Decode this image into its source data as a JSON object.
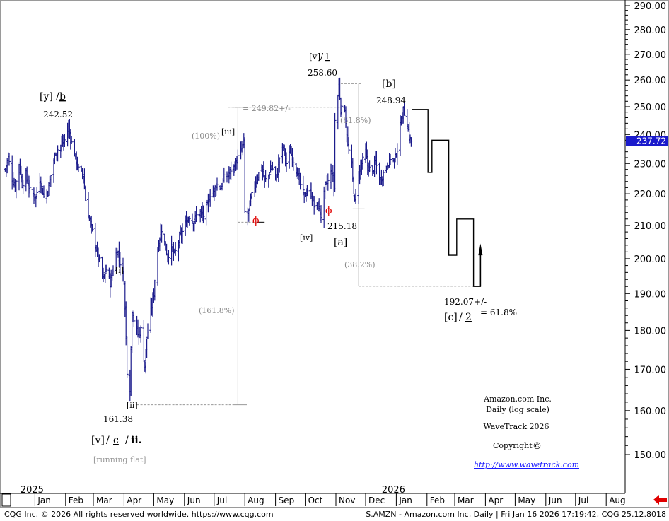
{
  "chart_data": {
    "type": "ohlc",
    "title": "Amazon.com Inc.",
    "subtitle": "Daily (log scale)",
    "scale": "log",
    "ylim": [
      141,
      291
    ],
    "grid": false,
    "colors": {
      "bars": "#1c1c8c",
      "axis": "#000000",
      "fib_lines": "#9a9a9a",
      "phi": "#e00000",
      "last_price_bg": "#1a1acc",
      "last_price_text": "#ffffff",
      "back_arrow": "#e00000"
    },
    "y_ticks": [
      "290.00",
      "280.00",
      "270.00",
      "260.00",
      "250.00",
      "240.00",
      "230.00",
      "220.00",
      "210.00",
      "200.00",
      "190.00",
      "180.00",
      "170.00",
      "160.00",
      "150.00"
    ],
    "last_price": "237.72",
    "x_axis": {
      "months": [
        "Jan",
        "Feb",
        "Mar",
        "Apr",
        "May",
        "Jun",
        "Jul",
        "Aug",
        "Sep",
        "Oct",
        "Nov",
        "Dec",
        "Jan",
        "Feb",
        "Mar",
        "Apr",
        "May",
        "Jun",
        "Jul",
        "Aug"
      ],
      "years": [
        "2025",
        "2026"
      ]
    },
    "price_path": [
      {
        "date": "2024-12-02",
        "close": 228
      },
      {
        "date": "2024-12-05",
        "close": 232
      },
      {
        "date": "2024-12-09",
        "close": 225
      },
      {
        "date": "2024-12-12",
        "close": 222
      },
      {
        "date": "2024-12-16",
        "close": 230
      },
      {
        "date": "2024-12-19",
        "close": 223
      },
      {
        "date": "2024-12-23",
        "close": 226
      },
      {
        "date": "2024-12-27",
        "close": 221
      },
      {
        "date": "2025-01-02",
        "close": 219
      },
      {
        "date": "2025-01-06",
        "close": 225
      },
      {
        "date": "2025-01-10",
        "close": 219
      },
      {
        "date": "2025-01-14",
        "close": 221
      },
      {
        "date": "2025-01-17",
        "close": 226
      },
      {
        "date": "2025-01-22",
        "close": 234
      },
      {
        "date": "2025-01-27",
        "close": 236
      },
      {
        "date": "2025-01-31",
        "close": 238
      },
      {
        "date": "2025-02-04",
        "close": 242.5
      },
      {
        "date": "2025-02-07",
        "close": 237
      },
      {
        "date": "2025-02-11",
        "close": 232
      },
      {
        "date": "2025-02-14",
        "close": 228
      },
      {
        "date": "2025-02-19",
        "close": 226
      },
      {
        "date": "2025-02-21",
        "close": 218
      },
      {
        "date": "2025-02-25",
        "close": 212
      },
      {
        "date": "2025-02-28",
        "close": 208
      },
      {
        "date": "2025-03-04",
        "close": 203
      },
      {
        "date": "2025-03-07",
        "close": 199
      },
      {
        "date": "2025-03-11",
        "close": 194
      },
      {
        "date": "2025-03-14",
        "close": 197
      },
      {
        "date": "2025-03-18",
        "close": 193
      },
      {
        "date": "2025-03-21",
        "close": 197
      },
      {
        "date": "2025-03-25",
        "close": 203
      },
      {
        "date": "2025-03-28",
        "close": 199
      },
      {
        "date": "2025-04-01",
        "close": 194
      },
      {
        "date": "2025-04-04",
        "close": 170
      },
      {
        "date": "2025-04-07",
        "close": 165
      },
      {
        "date": "2025-04-09",
        "close": 186
      },
      {
        "date": "2025-04-11",
        "close": 183
      },
      {
        "date": "2025-04-15",
        "close": 179
      },
      {
        "date": "2025-04-18",
        "close": 180
      },
      {
        "date": "2025-04-22",
        "close": 171
      },
      {
        "date": "2025-04-24",
        "close": 178
      },
      {
        "date": "2025-04-28",
        "close": 185
      },
      {
        "date": "2025-05-01",
        "close": 190
      },
      {
        "date": "2025-05-02",
        "close": 194
      },
      {
        "date": "2025-05-06",
        "close": 205
      },
      {
        "date": "2025-05-09",
        "close": 209
      },
      {
        "date": "2025-05-12",
        "close": 204
      },
      {
        "date": "2025-05-15",
        "close": 201
      },
      {
        "date": "2025-05-19",
        "close": 203
      },
      {
        "date": "2025-05-22",
        "close": 201
      },
      {
        "date": "2025-05-27",
        "close": 206
      },
      {
        "date": "2025-05-30",
        "close": 208
      },
      {
        "date": "2025-06-03",
        "close": 211
      },
      {
        "date": "2025-06-06",
        "close": 213
      },
      {
        "date": "2025-06-10",
        "close": 211
      },
      {
        "date": "2025-06-13",
        "close": 213
      },
      {
        "date": "2025-06-17",
        "close": 214
      },
      {
        "date": "2025-06-20",
        "close": 213
      },
      {
        "date": "2025-06-24",
        "close": 216
      },
      {
        "date": "2025-06-27",
        "close": 220
      },
      {
        "date": "2025-07-01",
        "close": 221
      },
      {
        "date": "2025-07-03",
        "close": 223
      },
      {
        "date": "2025-07-08",
        "close": 222
      },
      {
        "date": "2025-07-11",
        "close": 225
      },
      {
        "date": "2025-07-15",
        "close": 226
      },
      {
        "date": "2025-07-18",
        "close": 228
      },
      {
        "date": "2025-07-22",
        "close": 229
      },
      {
        "date": "2025-07-25",
        "close": 232
      },
      {
        "date": "2025-07-29",
        "close": 235
      },
      {
        "date": "2025-07-31",
        "close": 237
      },
      {
        "date": "2025-08-01",
        "close": 214
      },
      {
        "date": "2025-08-04",
        "close": 213
      },
      {
        "date": "2025-08-07",
        "close": 218
      },
      {
        "date": "2025-08-11",
        "close": 223
      },
      {
        "date": "2025-08-14",
        "close": 226
      },
      {
        "date": "2025-08-18",
        "close": 229
      },
      {
        "date": "2025-08-21",
        "close": 224
      },
      {
        "date": "2025-08-25",
        "close": 226
      },
      {
        "date": "2025-08-28",
        "close": 229
      },
      {
        "date": "2025-09-02",
        "close": 225
      },
      {
        "date": "2025-09-05",
        "close": 232
      },
      {
        "date": "2025-09-09",
        "close": 236
      },
      {
        "date": "2025-09-12",
        "close": 230
      },
      {
        "date": "2025-09-16",
        "close": 234
      },
      {
        "date": "2025-09-19",
        "close": 231
      },
      {
        "date": "2025-09-23",
        "close": 227
      },
      {
        "date": "2025-09-26",
        "close": 223
      },
      {
        "date": "2025-09-30",
        "close": 219
      },
      {
        "date": "2025-10-03",
        "close": 221
      },
      {
        "date": "2025-10-07",
        "close": 220
      },
      {
        "date": "2025-10-10",
        "close": 216
      },
      {
        "date": "2025-10-14",
        "close": 216
      },
      {
        "date": "2025-10-17",
        "close": 213
      },
      {
        "date": "2025-10-21",
        "close": 222
      },
      {
        "date": "2025-10-24",
        "close": 224
      },
      {
        "date": "2025-10-28",
        "close": 228
      },
      {
        "date": "2025-10-30",
        "close": 222
      },
      {
        "date": "2025-10-31",
        "close": 245
      },
      {
        "date": "2025-11-03",
        "close": 254
      },
      {
        "date": "2025-11-04",
        "close": 258.6
      },
      {
        "date": "2025-11-06",
        "close": 249
      },
      {
        "date": "2025-11-10",
        "close": 249
      },
      {
        "date": "2025-11-13",
        "close": 236
      },
      {
        "date": "2025-11-17",
        "close": 229
      },
      {
        "date": "2025-11-20",
        "close": 217
      },
      {
        "date": "2025-11-24",
        "close": 226
      },
      {
        "date": "2025-11-26",
        "close": 229
      },
      {
        "date": "2025-12-01",
        "close": 234
      },
      {
        "date": "2025-12-03",
        "close": 229
      },
      {
        "date": "2025-12-08",
        "close": 227
      },
      {
        "date": "2025-12-11",
        "close": 231
      },
      {
        "date": "2025-12-15",
        "close": 224
      },
      {
        "date": "2025-12-18",
        "close": 226
      },
      {
        "date": "2025-12-22",
        "close": 229
      },
      {
        "date": "2025-12-26",
        "close": 232
      },
      {
        "date": "2025-12-30",
        "close": 231
      },
      {
        "date": "2026-01-02",
        "close": 235
      },
      {
        "date": "2026-01-05",
        "close": 243
      },
      {
        "date": "2026-01-08",
        "close": 248.9
      },
      {
        "date": "2026-01-12",
        "close": 244
      },
      {
        "date": "2026-01-14",
        "close": 239
      },
      {
        "date": "2026-01-16",
        "close": 237.72
      }
    ],
    "projection": [
      {
        "date": "2026-01-23",
        "value": 249
      },
      {
        "date": "2026-02-02",
        "value": 227
      },
      {
        "date": "2026-02-06",
        "value": 238
      },
      {
        "date": "2026-02-23",
        "value": 201
      },
      {
        "date": "2026-03-03",
        "value": 212
      },
      {
        "date": "2026-03-20",
        "value": 192
      },
      {
        "date": "2026-03-27",
        "value": 203
      }
    ],
    "pivots": {
      "y_b": {
        "wave": "[y]",
        "sub": "b",
        "value": "242.52"
      },
      "v_c_ii": {
        "wave": "[v]",
        "sub": "c",
        "sub2": "ii.",
        "value": "161.38",
        "note": "[running flat]"
      },
      "v_1": {
        "wave": "[v]",
        "sub": "1",
        "value": "258.60"
      },
      "b": {
        "wave": "[b]",
        "value": "248.94"
      },
      "a": {
        "wave": "[a]",
        "value": "215.18"
      },
      "c_2": {
        "wave": "[c]",
        "sub": "2",
        "value": "192.07+/-",
        "ratio": "= 61.8%"
      },
      "wave_i": "[i]",
      "wave_ii": "[ii]",
      "wave_iii": "[iii]",
      "wave_iv": "[iv]"
    },
    "fib_annotations": {
      "target_249": "= 249.82+/-",
      "pct_100": "(100%)",
      "pct_161": "(161.8%)",
      "pct_61": "(61.8%)",
      "pct_38": "(38.2%)",
      "phi": "ϕ"
    }
  },
  "annotation_block": {
    "name": "Amazon.com Inc.",
    "scale": "Daily (log scale)",
    "brand": "WaveTrack 2026",
    "copyright": "Copyright",
    "copyright_symbol": "©",
    "url": "http://www.wavetrack.com"
  },
  "footer": {
    "left": "CQG Inc. © 2026 All rights reserved worldwide. https://www.cqg.com",
    "right": "S.AMZN - Amazon.com Inc, Daily | Fri Jan 16 2026 17:19:42, CQG 25.12.8018"
  },
  "controls": {
    "back_arrow_icon": "red-left-arrow-icon"
  }
}
